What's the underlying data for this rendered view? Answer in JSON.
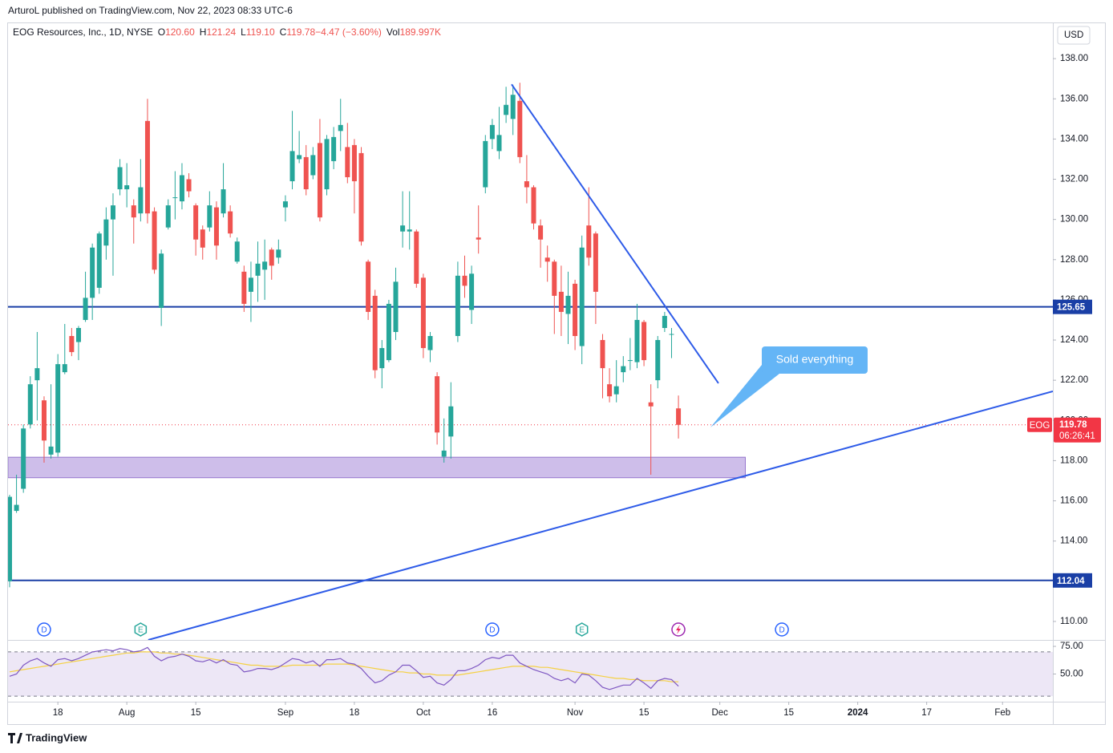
{
  "header": {
    "published": "ArturoL published on TradingView.com, Nov 22, 2023 08:33 UTC-6",
    "currency": "USD"
  },
  "footer": "TradingView",
  "callout": "Sold everything",
  "chart_data": [
    {
      "type": "candlestick",
      "title": "EOG Resources, Inc., 1D, NYSE",
      "legend": [
        {
          "k": "O",
          "v": "120.60"
        },
        {
          "k": "H",
          "v": "121.24"
        },
        {
          "k": "L",
          "v": "119.10"
        },
        {
          "k": "C",
          "v": "119.78"
        },
        {
          "k": "",
          "v": "−4.47 (−3.60%)"
        },
        {
          "k": "Vol",
          "v": "189.997K"
        }
      ],
      "up_color": "#26a69a",
      "down_color": "#ef5350",
      "xlim": [
        -0.23,
        151.3
      ],
      "ylim": [
        109.08,
        139.8
      ],
      "yticks": [
        {
          "value": 110,
          "label": "110.00"
        },
        {
          "value": 112,
          "label": "112.00"
        },
        {
          "value": 114,
          "label": "114.00"
        },
        {
          "value": 116,
          "label": "116.00"
        },
        {
          "value": 118,
          "label": "118.00"
        },
        {
          "value": 120,
          "label": "120.00"
        },
        {
          "value": 122,
          "label": "122.00"
        },
        {
          "value": 124,
          "label": "124.00"
        },
        {
          "value": 126,
          "label": "126.00"
        },
        {
          "value": 128,
          "label": "128.00"
        },
        {
          "value": 130,
          "label": "130.00"
        },
        {
          "value": 132,
          "label": "132.00"
        },
        {
          "value": 134,
          "label": "134.00"
        },
        {
          "value": 136,
          "label": "136.00"
        },
        {
          "value": 138,
          "label": "138.00"
        }
      ],
      "xticks": [
        {
          "value": 7,
          "label": "18"
        },
        {
          "value": 17,
          "label": "Aug"
        },
        {
          "value": 27,
          "label": "15"
        },
        {
          "value": 40,
          "label": "Sep"
        },
        {
          "value": 50,
          "label": "18"
        },
        {
          "value": 60,
          "label": "Oct"
        },
        {
          "value": 70,
          "label": "16"
        },
        {
          "value": 82,
          "label": "Nov"
        },
        {
          "value": 92,
          "label": "15"
        },
        {
          "value": 103,
          "label": "Dec"
        },
        {
          "value": 113,
          "label": "15"
        },
        {
          "value": 123,
          "label": "2024"
        },
        {
          "value": 133,
          "label": "17"
        },
        {
          "value": 144,
          "label": "Feb"
        }
      ],
      "grid": false,
      "hlines": [
        125.65,
        112.04
      ],
      "hline_color": "#1a3fa6",
      "last_price": {
        "symbol": "EOG",
        "value": 119.78,
        "countdown": "06:26:41",
        "color": "#f23645"
      },
      "zone": {
        "low": 117.15,
        "high": 118.17,
        "end": 106.7,
        "color": "#c5b3e6"
      },
      "trendlines": [
        {
          "x": [
            72.8,
            102.8
          ],
          "y": [
            136.72,
            121.85
          ]
        },
        {
          "x": [
            20.1,
            151.3
          ],
          "y": [
            109.08,
            121.45
          ]
        }
      ],
      "trend_color": "#2e5be8",
      "events": [
        {
          "label": "D",
          "at": 5
        },
        {
          "label": "E",
          "at": 19
        },
        {
          "label": "D",
          "at": 70
        },
        {
          "label": "E",
          "at": 83
        },
        {
          "label": "D",
          "at": 112
        }
      ],
      "candles": [
        {
          "open": 112.0,
          "high": 116.3,
          "low": 111.7,
          "close": 116.2
        },
        {
          "open": 115.5,
          "high": 117.3,
          "low": 115.4,
          "close": 115.8
        },
        {
          "open": 116.6,
          "high": 119.8,
          "low": 116.4,
          "close": 119.6
        },
        {
          "open": 119.8,
          "high": 122.2,
          "low": 119.6,
          "close": 121.8
        },
        {
          "open": 122.0,
          "high": 124.4,
          "low": 120.0,
          "close": 122.6
        },
        {
          "open": 121.0,
          "high": 121.2,
          "low": 117.9,
          "close": 119.0
        },
        {
          "open": 118.3,
          "high": 121.8,
          "low": 118.1,
          "close": 118.7
        },
        {
          "open": 118.4,
          "high": 123.3,
          "low": 118.2,
          "close": 122.8
        },
        {
          "open": 122.4,
          "high": 124.8,
          "low": 122.3,
          "close": 122.8
        },
        {
          "open": 124.2,
          "high": 124.6,
          "low": 123.2,
          "close": 123.4
        },
        {
          "open": 123.9,
          "high": 124.7,
          "low": 123.0,
          "close": 124.6
        },
        {
          "open": 125.0,
          "high": 127.4,
          "low": 124.9,
          "close": 126.1
        },
        {
          "open": 126.1,
          "high": 128.8,
          "low": 125.0,
          "close": 128.6
        },
        {
          "open": 126.6,
          "high": 129.4,
          "low": 126.3,
          "close": 129.3
        },
        {
          "open": 128.7,
          "high": 130.6,
          "low": 128.0,
          "close": 130.0
        },
        {
          "open": 130.0,
          "high": 131.3,
          "low": 127.2,
          "close": 130.7
        },
        {
          "open": 131.5,
          "high": 133.0,
          "low": 131.2,
          "close": 132.6
        },
        {
          "open": 131.5,
          "high": 132.8,
          "low": 130.6,
          "close": 131.7
        },
        {
          "open": 130.7,
          "high": 131.0,
          "low": 128.8,
          "close": 130.1
        },
        {
          "open": 130.3,
          "high": 133.0,
          "low": 129.9,
          "close": 131.6
        },
        {
          "open": 134.9,
          "high": 136.0,
          "low": 129.8,
          "close": 130.3
        },
        {
          "open": 130.4,
          "high": 130.6,
          "low": 127.3,
          "close": 127.5
        },
        {
          "open": 125.6,
          "high": 128.5,
          "low": 124.7,
          "close": 128.3
        },
        {
          "open": 129.6,
          "high": 131.0,
          "low": 129.5,
          "close": 130.7
        },
        {
          "open": 131.1,
          "high": 132.4,
          "low": 130.0,
          "close": 131.1
        },
        {
          "open": 130.9,
          "high": 132.8,
          "low": 130.5,
          "close": 132.2
        },
        {
          "open": 132.0,
          "high": 132.3,
          "low": 131.1,
          "close": 131.4
        },
        {
          "open": 130.7,
          "high": 130.8,
          "low": 128.2,
          "close": 129.0
        },
        {
          "open": 129.5,
          "high": 129.7,
          "low": 128.0,
          "close": 128.6
        },
        {
          "open": 129.6,
          "high": 131.4,
          "low": 129.4,
          "close": 130.7
        },
        {
          "open": 130.6,
          "high": 130.9,
          "low": 128.0,
          "close": 128.7
        },
        {
          "open": 130.3,
          "high": 132.8,
          "low": 130.1,
          "close": 131.5
        },
        {
          "open": 130.4,
          "high": 130.7,
          "low": 129.1,
          "close": 129.3
        },
        {
          "open": 127.9,
          "high": 129.1,
          "low": 127.8,
          "close": 128.9
        },
        {
          "open": 127.4,
          "high": 127.7,
          "low": 125.4,
          "close": 125.8
        },
        {
          "open": 126.4,
          "high": 127.9,
          "low": 124.9,
          "close": 127.1
        },
        {
          "open": 127.2,
          "high": 128.9,
          "low": 125.9,
          "close": 127.8
        },
        {
          "open": 127.5,
          "high": 129.0,
          "low": 126.0,
          "close": 127.9
        },
        {
          "open": 128.5,
          "high": 128.6,
          "low": 127.0,
          "close": 127.7
        },
        {
          "open": 128.1,
          "high": 129.0,
          "low": 127.8,
          "close": 128.5
        },
        {
          "open": 130.6,
          "high": 131.2,
          "low": 129.9,
          "close": 130.9
        },
        {
          "open": 131.9,
          "high": 135.4,
          "low": 131.5,
          "close": 133.4
        },
        {
          "open": 133.0,
          "high": 134.4,
          "low": 132.8,
          "close": 133.2
        },
        {
          "open": 133.1,
          "high": 133.7,
          "low": 131.2,
          "close": 131.5
        },
        {
          "open": 132.2,
          "high": 133.6,
          "low": 132.0,
          "close": 133.2
        },
        {
          "open": 133.8,
          "high": 135.0,
          "low": 129.9,
          "close": 130.1
        },
        {
          "open": 131.5,
          "high": 134.2,
          "low": 131.2,
          "close": 134.0
        },
        {
          "open": 132.9,
          "high": 134.6,
          "low": 132.5,
          "close": 134.1
        },
        {
          "open": 134.4,
          "high": 136.0,
          "low": 133.4,
          "close": 134.7
        },
        {
          "open": 133.6,
          "high": 134.8,
          "low": 131.8,
          "close": 132.1
        },
        {
          "open": 133.7,
          "high": 134.0,
          "low": 130.3,
          "close": 131.9
        },
        {
          "open": 133.3,
          "high": 133.6,
          "low": 128.7,
          "close": 128.9
        },
        {
          "open": 127.9,
          "high": 128.0,
          "low": 125.0,
          "close": 125.4
        },
        {
          "open": 126.2,
          "high": 126.5,
          "low": 122.1,
          "close": 122.5
        },
        {
          "open": 122.6,
          "high": 124.0,
          "low": 121.6,
          "close": 123.6
        },
        {
          "open": 123.0,
          "high": 126.0,
          "low": 122.9,
          "close": 125.8
        },
        {
          "open": 124.4,
          "high": 127.6,
          "low": 124.0,
          "close": 126.9
        },
        {
          "open": 129.4,
          "high": 131.4,
          "low": 128.6,
          "close": 129.7
        },
        {
          "open": 129.4,
          "high": 131.4,
          "low": 128.5,
          "close": 129.5
        },
        {
          "open": 129.4,
          "high": 129.5,
          "low": 126.6,
          "close": 126.8
        },
        {
          "open": 127.1,
          "high": 127.3,
          "low": 123.1,
          "close": 123.6
        },
        {
          "open": 123.5,
          "high": 124.4,
          "low": 122.9,
          "close": 124.2
        },
        {
          "open": 122.2,
          "high": 122.4,
          "low": 118.8,
          "close": 119.4
        },
        {
          "open": 118.2,
          "high": 120.1,
          "low": 117.9,
          "close": 118.5
        },
        {
          "open": 119.2,
          "high": 121.9,
          "low": 118.1,
          "close": 120.7
        },
        {
          "open": 124.2,
          "high": 127.9,
          "low": 123.9,
          "close": 127.2
        },
        {
          "open": 127.2,
          "high": 128.2,
          "low": 126.1,
          "close": 126.7
        },
        {
          "open": 125.5,
          "high": 127.7,
          "low": 124.8,
          "close": 127.3
        },
        {
          "open": 129.1,
          "high": 130.7,
          "low": 128.3,
          "close": 129.0
        },
        {
          "open": 131.6,
          "high": 134.2,
          "low": 131.3,
          "close": 133.9
        },
        {
          "open": 134.0,
          "high": 135.0,
          "low": 133.5,
          "close": 134.7
        },
        {
          "open": 133.4,
          "high": 135.6,
          "low": 133.0,
          "close": 134.2
        },
        {
          "open": 135.2,
          "high": 136.6,
          "low": 134.8,
          "close": 135.7
        },
        {
          "open": 135.0,
          "high": 136.7,
          "low": 134.2,
          "close": 136.2
        },
        {
          "open": 135.9,
          "high": 136.8,
          "low": 132.8,
          "close": 133.1
        },
        {
          "open": 131.9,
          "high": 133.2,
          "low": 130.8,
          "close": 131.6
        },
        {
          "open": 131.6,
          "high": 131.7,
          "low": 129.5,
          "close": 129.8
        },
        {
          "open": 129.7,
          "high": 130.0,
          "low": 127.6,
          "close": 129.0
        },
        {
          "open": 128.1,
          "high": 128.7,
          "low": 126.9,
          "close": 127.9
        },
        {
          "open": 127.9,
          "high": 128.0,
          "low": 124.3,
          "close": 126.2
        },
        {
          "open": 126.4,
          "high": 127.7,
          "low": 124.2,
          "close": 125.4
        },
        {
          "open": 125.3,
          "high": 127.4,
          "low": 123.8,
          "close": 126.2
        },
        {
          "open": 126.8,
          "high": 127.0,
          "low": 123.5,
          "close": 124.2
        },
        {
          "open": 123.7,
          "high": 129.2,
          "low": 122.8,
          "close": 128.6
        },
        {
          "open": 129.7,
          "high": 131.6,
          "low": 127.7,
          "close": 128.1
        },
        {
          "open": 129.3,
          "high": 129.4,
          "low": 124.8,
          "close": 126.4
        },
        {
          "open": 124.0,
          "high": 124.3,
          "low": 121.1,
          "close": 122.6
        },
        {
          "open": 121.8,
          "high": 122.6,
          "low": 120.9,
          "close": 121.2
        },
        {
          "open": 121.3,
          "high": 123.0,
          "low": 120.9,
          "close": 121.7
        },
        {
          "open": 122.4,
          "high": 123.2,
          "low": 121.9,
          "close": 122.7
        },
        {
          "open": 123.0,
          "high": 124.1,
          "low": 122.5,
          "close": 123.0
        },
        {
          "open": 122.9,
          "high": 125.8,
          "low": 122.6,
          "close": 125.0
        },
        {
          "open": 124.9,
          "high": 125.0,
          "low": 122.7,
          "close": 123.0
        },
        {
          "open": 120.9,
          "high": 121.8,
          "low": 117.3,
          "close": 120.7
        },
        {
          "open": 122.0,
          "high": 124.2,
          "low": 121.6,
          "close": 124.0
        },
        {
          "open": 124.6,
          "high": 125.4,
          "low": 124.4,
          "close": 125.2
        },
        {
          "open": 124.3,
          "high": 124.6,
          "low": 123.1,
          "close": 124.3
        },
        {
          "open": 120.6,
          "high": 121.24,
          "low": 119.1,
          "close": 119.78
        }
      ]
    },
    {
      "type": "line",
      "ylim": [
        25,
        80.1
      ],
      "yticks": [
        {
          "value": 75,
          "label": "75.00"
        },
        {
          "value": 50,
          "label": "50.00"
        }
      ],
      "levels": [
        70,
        30
      ],
      "band_color": "#ede7f6",
      "series": [
        {
          "color": "#7e57c2",
          "values": [
            48,
            50,
            58,
            62,
            64,
            60,
            57,
            63,
            64,
            62,
            64,
            67,
            70,
            71,
            72,
            71,
            73,
            72,
            70,
            71,
            74,
            66,
            62,
            65,
            66,
            68,
            66,
            62,
            61,
            63,
            60,
            63,
            59,
            58,
            52,
            53,
            55,
            55,
            54,
            56,
            60,
            64,
            63,
            60,
            62,
            57,
            63,
            63,
            64,
            60,
            59,
            55,
            48,
            42,
            44,
            49,
            52,
            58,
            58,
            53,
            47,
            48,
            42,
            40,
            45,
            53,
            53,
            55,
            58,
            63,
            65,
            64,
            67,
            67,
            60,
            57,
            54,
            52,
            50,
            46,
            44,
            46,
            42,
            50,
            49,
            44,
            38,
            36,
            38,
            40,
            40,
            46,
            42,
            37,
            44,
            46,
            45,
            39
          ]
        },
        {
          "color": "#f5d142",
          "values": [
            52,
            53,
            54,
            55,
            56,
            57,
            58,
            59,
            60,
            61,
            62,
            63,
            64,
            65,
            66,
            67,
            68,
            69,
            69,
            70,
            70,
            70,
            69,
            69,
            68,
            68,
            67,
            66,
            65,
            64,
            63,
            62,
            61,
            60,
            59,
            58,
            58,
            57,
            57,
            57,
            57,
            58,
            58,
            58,
            58,
            58,
            59,
            59,
            59,
            59,
            58,
            57,
            56,
            55,
            54,
            53,
            52,
            52,
            51,
            51,
            50,
            50,
            49,
            49,
            49,
            49,
            50,
            51,
            52,
            53,
            54,
            55,
            56,
            57,
            57,
            57,
            57,
            56,
            56,
            55,
            54,
            53,
            52,
            51,
            50,
            49,
            48,
            47,
            46,
            46,
            45,
            45,
            44,
            44,
            44,
            44,
            43,
            43
          ]
        }
      ]
    }
  ]
}
